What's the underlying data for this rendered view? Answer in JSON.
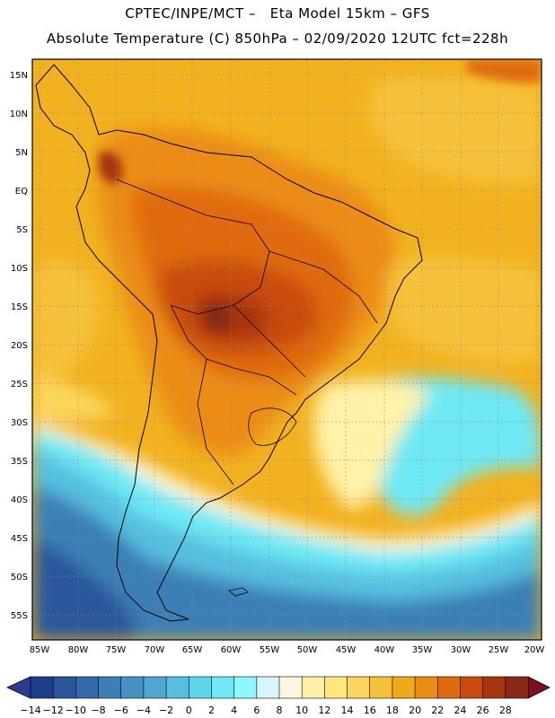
{
  "header": {
    "line1": "CPTEC/INPE/MCT –   Eta Model 15km – GFS",
    "line2": "Absolute Temperature (C) 850hPa – 02/09/2020 12UTC fct=228h"
  },
  "axes": {
    "lat_labels": [
      "15N",
      "10N",
      "5N",
      "EQ",
      "5S",
      "10S",
      "15S",
      "20S",
      "25S",
      "30S",
      "35S",
      "40S",
      "45S",
      "50S",
      "55S"
    ],
    "lon_labels": [
      "85W",
      "80W",
      "75W",
      "70W",
      "65W",
      "60W",
      "55W",
      "50W",
      "45W",
      "40W",
      "35W",
      "30W",
      "25W",
      "20W"
    ]
  },
  "colorbar": {
    "labels": [
      "-14",
      "-12",
      "-10",
      "-8",
      "-6",
      "-4",
      "-2",
      "0",
      "2",
      "4",
      "6",
      "8",
      "10",
      "12",
      "14",
      "16",
      "18",
      "20",
      "22",
      "24",
      "26",
      "28"
    ],
    "colors": [
      "#1d3f8a",
      "#2a569b",
      "#336aa8",
      "#3b7fb6",
      "#4593c3",
      "#4fa8d2",
      "#56bfe0",
      "#5fd5ea",
      "#6ee8f4",
      "#8ff6fb",
      "#d6f6fb",
      "#fff6df",
      "#fff2a8",
      "#ffe680",
      "#fbd55c",
      "#f6c13a",
      "#f0a918",
      "#ec8c12",
      "#e06a10",
      "#c94c0e",
      "#a8360d",
      "#872913"
    ],
    "under_color": "#2a3d93",
    "over_color": "#7a1020"
  },
  "palette": {
    "land_hot": "#c24d0f",
    "ocean_warm": "#f2b21f"
  }
}
